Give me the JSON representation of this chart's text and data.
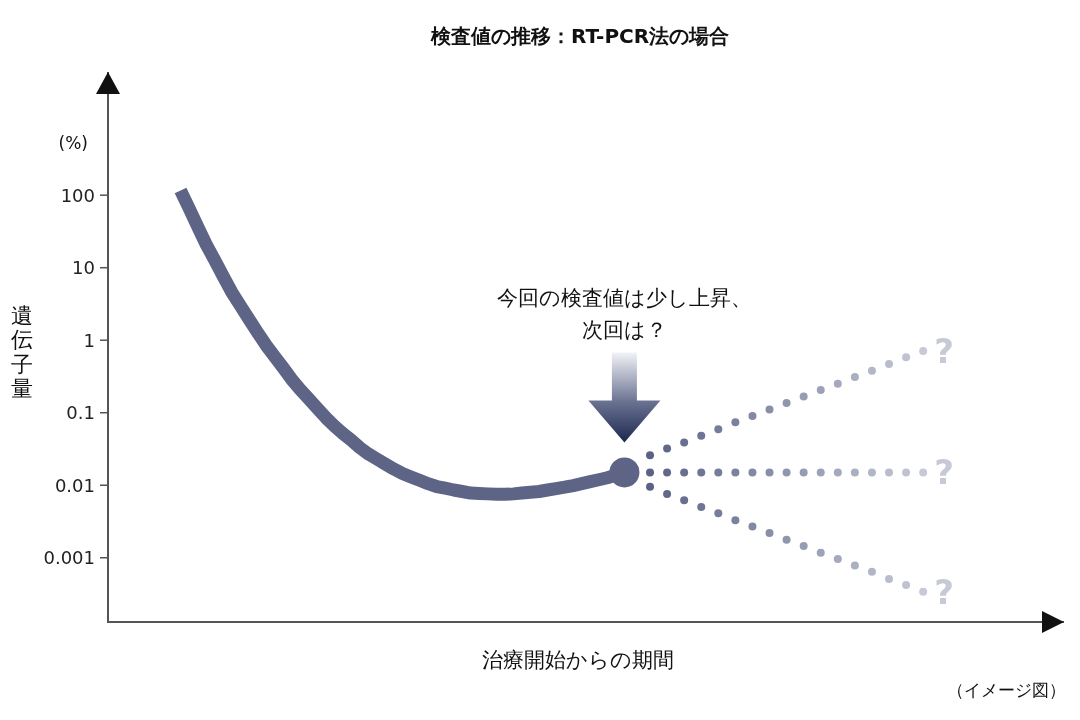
{
  "chart_data": {
    "type": "line",
    "title": "検査値の推移：RT-PCR法の場合",
    "xlabel": "治療開始からの期間",
    "ylabel": "遺伝子量",
    "annotations": [
      "(%)",
      "今回の検査値は少し上昇、次回は？",
      "（イメージ図）"
    ],
    "categories": [
      null,
      null,
      null,
      null,
      null,
      null,
      null,
      null,
      null,
      null,
      null,
      null,
      null,
      null,
      null,
      null,
      null,
      null,
      null,
      null,
      null,
      null,
      null,
      null,
      null,
      null,
      null,
      null,
      null,
      null,
      null,
      null,
      null,
      null,
      null,
      null,
      null,
      null,
      null,
      null,
      null,
      null,
      null,
      null,
      null,
      null,
      null,
      null,
      null,
      null,
      null,
      null,
      null,
      null,
      null,
      null,
      null,
      null,
      null,
      null,
      null,
      null,
      null,
      null,
      null,
      null,
      null,
      null,
      null,
      null,
      null,
      null,
      null,
      null,
      null,
      null,
      null,
      null,
      null,
      null,
      null,
      null,
      null,
      null,
      null,
      null,
      null,
      null,
      null,
      null,
      null,
      null,
      null,
      null,
      null,
      null,
      null,
      null,
      null,
      null,
      null,
      null,
      null,
      null,
      null,
      null,
      null,
      null,
      null,
      null,
      null,
      null
    ],
    "log": true,
    "ylim": [
      0.00013,
      5000
    ],
    "yticks": [
      100,
      10,
      1,
      0.1,
      0.01,
      0.001
    ],
    "tick_labels": "y",
    "series": [
      {
        "type": "line",
        "color": "#5d6486",
        "marker": "none",
        "line_style": "solid",
        "values": [
          null,
          null,
          null,
          null,
          null,
          null,
          null,
          null,
          116,
          66,
          37,
          21,
          12.7,
          7.6,
          4.6,
          3,
          1.96,
          1.29,
          0.86,
          0.6,
          0.42,
          0.29,
          0.21,
          0.156,
          0.116,
          0.086,
          0.066,
          0.052,
          0.042,
          0.033,
          0.027,
          0.023,
          0.0196,
          0.0167,
          0.0145,
          0.013,
          0.0117,
          0.0105,
          0.0096,
          0.0091,
          0.0086,
          0.0082,
          0.0078,
          0.0077,
          0.0076,
          0.0075,
          0.0075,
          0.0076,
          0.0078,
          0.008,
          0.0082,
          0.0086,
          0.009,
          0.0094,
          0.0099,
          0.0105,
          0.0112,
          0.0119,
          0.0127,
          0.0138,
          0.015,
          null,
          null,
          null,
          null,
          null,
          null,
          null,
          null,
          null,
          null,
          null,
          null,
          null,
          null,
          null,
          null,
          null,
          null,
          null,
          null,
          null,
          null,
          null,
          null,
          null,
          null,
          null,
          null,
          null,
          null,
          null,
          null,
          null,
          null,
          null,
          null,
          null,
          null,
          null,
          null,
          null,
          null,
          null,
          null,
          null,
          null,
          null,
          null,
          null,
          null,
          null
        ]
      },
      {
        "type": "scatter",
        "name": "?",
        "marker": "circle",
        "colors": [
          null,
          null,
          null,
          null,
          null,
          null,
          null,
          null,
          null,
          null,
          null,
          null,
          null,
          null,
          null,
          null,
          null,
          null,
          null,
          null,
          null,
          null,
          null,
          null,
          null,
          null,
          null,
          null,
          null,
          null,
          null,
          null,
          null,
          null,
          null,
          null,
          null,
          null,
          null,
          null,
          null,
          null,
          null,
          null,
          null,
          null,
          null,
          null,
          null,
          null,
          null,
          null,
          null,
          null,
          null,
          null,
          null,
          null,
          null,
          null,
          null,
          null,
          null,
          "#5b6285",
          null,
          "#62688a",
          null,
          "#686f8f",
          null,
          "#6f7594",
          null,
          "#767c99",
          null,
          "#7c829e",
          null,
          "#8389a3",
          null,
          "#8a8fa8",
          null,
          "#9196ad",
          null,
          "#979cb2",
          null,
          "#9ea2b8",
          null,
          "#a5a9bd",
          null,
          "#abafc2",
          null,
          "#b2b6c7",
          null,
          "#b9bccc",
          null,
          "#bfc3d1",
          null,
          "#c6c9d6",
          null,
          null,
          null,
          null,
          null,
          null,
          null,
          null,
          null,
          null,
          null,
          null,
          null,
          null,
          null,
          null
        ],
        "values": [
          null,
          null,
          null,
          null,
          null,
          null,
          null,
          null,
          null,
          null,
          null,
          null,
          null,
          null,
          null,
          null,
          null,
          null,
          null,
          null,
          null,
          null,
          null,
          null,
          null,
          null,
          null,
          null,
          null,
          null,
          null,
          null,
          null,
          null,
          null,
          null,
          null,
          null,
          null,
          null,
          null,
          null,
          null,
          null,
          null,
          null,
          null,
          null,
          null,
          null,
          null,
          null,
          null,
          null,
          null,
          null,
          null,
          null,
          null,
          null,
          null,
          null,
          null,
          0.026,
          null,
          0.032,
          null,
          0.039,
          null,
          0.048,
          null,
          0.059,
          null,
          0.074,
          null,
          0.09,
          null,
          0.111,
          null,
          0.136,
          null,
          0.168,
          null,
          0.205,
          null,
          0.25,
          null,
          0.31,
          null,
          0.38,
          null,
          0.47,
          null,
          0.58,
          null,
          0.71,
          null,
          null,
          null,
          null,
          null,
          null,
          null,
          null,
          null,
          null,
          null,
          null,
          null,
          null,
          null,
          null
        ]
      },
      {
        "type": "scatter",
        "name": "?",
        "marker": "circle",
        "colors": [
          null,
          null,
          null,
          null,
          null,
          null,
          null,
          null,
          null,
          null,
          null,
          null,
          null,
          null,
          null,
          null,
          null,
          null,
          null,
          null,
          null,
          null,
          null,
          null,
          null,
          null,
          null,
          null,
          null,
          null,
          null,
          null,
          null,
          null,
          null,
          null,
          null,
          null,
          null,
          null,
          null,
          null,
          null,
          null,
          null,
          null,
          null,
          null,
          null,
          null,
          null,
          null,
          null,
          null,
          null,
          null,
          null,
          null,
          null,
          null,
          null,
          null,
          null,
          "#5b6285",
          null,
          "#62688a",
          null,
          "#686f8f",
          null,
          "#6f7594",
          null,
          "#767c99",
          null,
          "#7c829e",
          null,
          "#8389a3",
          null,
          "#8a8fa8",
          null,
          "#9196ad",
          null,
          "#979cb2",
          null,
          "#9ea2b8",
          null,
          "#a5a9bd",
          null,
          "#abafc2",
          null,
          "#b2b6c7",
          null,
          "#b9bccc",
          null,
          "#bfc3d1",
          null,
          "#c6c9d6",
          null,
          null,
          null,
          null,
          null,
          null,
          null,
          null,
          null,
          null,
          null,
          null,
          null,
          null,
          null,
          null
        ],
        "values": [
          null,
          null,
          null,
          null,
          null,
          null,
          null,
          null,
          null,
          null,
          null,
          null,
          null,
          null,
          null,
          null,
          null,
          null,
          null,
          null,
          null,
          null,
          null,
          null,
          null,
          null,
          null,
          null,
          null,
          null,
          null,
          null,
          null,
          null,
          null,
          null,
          null,
          null,
          null,
          null,
          null,
          null,
          null,
          null,
          null,
          null,
          null,
          null,
          null,
          null,
          null,
          null,
          null,
          null,
          null,
          null,
          null,
          null,
          null,
          null,
          null,
          null,
          null,
          0.015,
          null,
          0.015,
          null,
          0.015,
          null,
          0.015,
          null,
          0.015,
          null,
          0.015,
          null,
          0.015,
          null,
          0.015,
          null,
          0.015,
          null,
          0.015,
          null,
          0.015,
          null,
          0.015,
          null,
          0.015,
          null,
          0.015,
          null,
          0.015,
          null,
          0.015,
          null,
          0.015,
          null,
          null,
          null,
          null,
          null,
          null,
          null,
          null,
          null,
          null,
          null,
          null,
          null,
          null,
          null,
          null
        ]
      },
      {
        "type": "scatter",
        "name": "?",
        "marker": "circle",
        "colors": [
          null,
          null,
          null,
          null,
          null,
          null,
          null,
          null,
          null,
          null,
          null,
          null,
          null,
          null,
          null,
          null,
          null,
          null,
          null,
          null,
          null,
          null,
          null,
          null,
          null,
          null,
          null,
          null,
          null,
          null,
          null,
          null,
          null,
          null,
          null,
          null,
          null,
          null,
          null,
          null,
          null,
          null,
          null,
          null,
          null,
          null,
          null,
          null,
          null,
          null,
          null,
          null,
          null,
          null,
          null,
          null,
          null,
          null,
          null,
          null,
          null,
          null,
          null,
          "#5b6285",
          null,
          "#62688a",
          null,
          "#686f8f",
          null,
          "#6f7594",
          null,
          "#767c99",
          null,
          "#7c829e",
          null,
          "#8389a3",
          null,
          "#8a8fa8",
          null,
          "#9196ad",
          null,
          "#979cb2",
          null,
          "#9ea2b8",
          null,
          "#a5a9bd",
          null,
          "#abafc2",
          null,
          "#b2b6c7",
          null,
          "#b9bccc",
          null,
          "#bfc3d1",
          null,
          "#c6c9d6",
          null,
          null,
          null,
          null,
          null,
          null,
          null,
          null,
          null,
          null,
          null,
          null,
          null,
          null,
          null,
          null
        ],
        "values": [
          null,
          null,
          null,
          null,
          null,
          null,
          null,
          null,
          null,
          null,
          null,
          null,
          null,
          null,
          null,
          null,
          null,
          null,
          null,
          null,
          null,
          null,
          null,
          null,
          null,
          null,
          null,
          null,
          null,
          null,
          null,
          null,
          null,
          null,
          null,
          null,
          null,
          null,
          null,
          null,
          null,
          null,
          null,
          null,
          null,
          null,
          null,
          null,
          null,
          null,
          null,
          null,
          null,
          null,
          null,
          null,
          null,
          null,
          null,
          null,
          null,
          null,
          null,
          0.0095,
          null,
          0.0076,
          null,
          0.0062,
          null,
          0.005,
          null,
          0.0041,
          null,
          0.0033,
          null,
          0.0027,
          null,
          0.0022,
          null,
          0.00177,
          null,
          0.00145,
          null,
          0.00117,
          null,
          0.00096,
          null,
          0.00078,
          null,
          0.00064,
          null,
          0.00051,
          null,
          0.00042,
          null,
          0.00034,
          null,
          null,
          null,
          null,
          null,
          null,
          null,
          null,
          null,
          null,
          null,
          null,
          null,
          null,
          null,
          null
        ]
      },
      {
        "type": "bubble",
        "color": "#5d6486",
        "marker": "circle",
        "values": [
          null,
          null,
          null,
          null,
          null,
          null,
          null,
          null,
          null,
          null,
          null,
          null,
          null,
          null,
          null,
          null,
          null,
          null,
          null,
          null,
          null,
          null,
          null,
          null,
          null,
          null,
          null,
          null,
          null,
          null,
          null,
          null,
          null,
          null,
          null,
          null,
          null,
          null,
          null,
          null,
          null,
          null,
          null,
          null,
          null,
          null,
          null,
          null,
          null,
          null,
          null,
          null,
          null,
          null,
          null,
          null,
          null,
          null,
          null,
          null,
          0.015,
          null,
          null,
          null,
          null,
          null,
          null,
          null,
          null,
          null,
          null,
          null,
          null,
          null,
          null,
          null,
          null,
          null,
          null,
          null,
          null,
          null,
          null,
          null,
          null,
          null,
          null,
          null,
          null,
          null,
          null,
          null,
          null,
          null,
          null,
          null,
          null,
          null,
          null,
          null,
          null,
          null,
          null,
          null,
          null,
          null,
          null,
          null,
          null,
          null,
          null,
          null
        ],
        "sizes": [
          null,
          null,
          null,
          null,
          null,
          null,
          null,
          null,
          null,
          null,
          null,
          null,
          null,
          null,
          null,
          null,
          null,
          null,
          null,
          null,
          null,
          null,
          null,
          null,
          null,
          null,
          null,
          null,
          null,
          null,
          null,
          null,
          null,
          null,
          null,
          null,
          null,
          null,
          null,
          null,
          null,
          null,
          null,
          null,
          null,
          null,
          null,
          null,
          null,
          null,
          null,
          null,
          null,
          null,
          null,
          null,
          null,
          null,
          null,
          null,
          1,
          null,
          null,
          null,
          null,
          null,
          null,
          null,
          null,
          null,
          null,
          null,
          null,
          null,
          null,
          null,
          null,
          null,
          null,
          null,
          null,
          null,
          null,
          null,
          null,
          null,
          null,
          null,
          null,
          null,
          null,
          null,
          null,
          null,
          null,
          null,
          null,
          null,
          null,
          null,
          null,
          null,
          null,
          null,
          null,
          null,
          null,
          null,
          null,
          null,
          null,
          null
        ]
      }
    ]
  }
}
